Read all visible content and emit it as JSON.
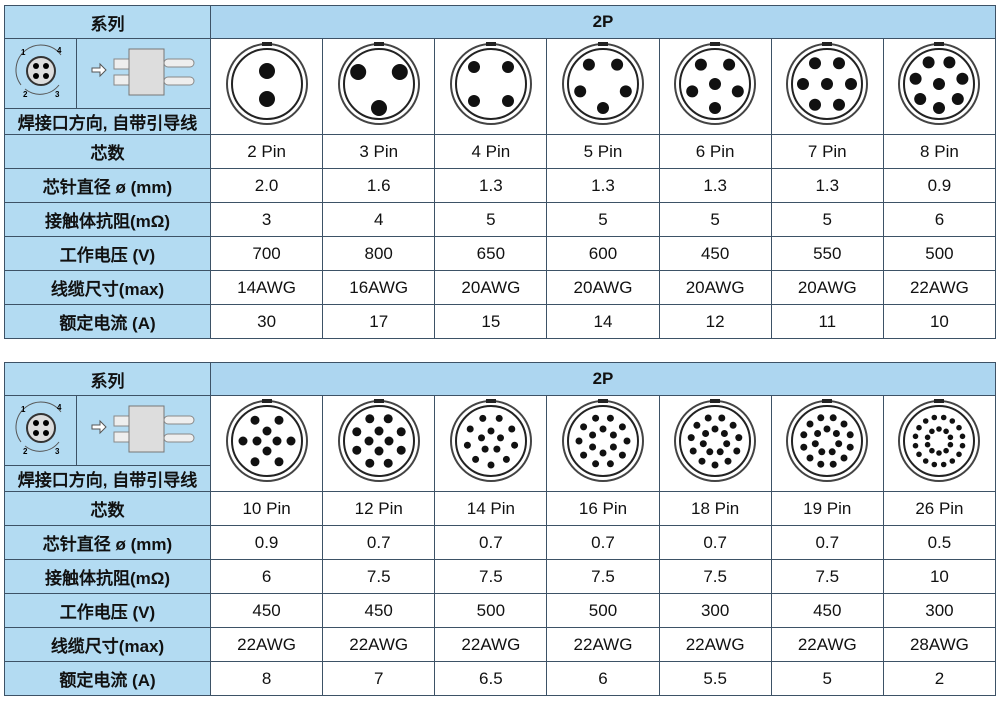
{
  "tables": [
    {
      "series_label": "系列",
      "series_value": "2P",
      "note": "焊接口方向, 自带引导线",
      "row_labels": [
        "芯数",
        "芯针直径 ø (mm)",
        "接触体抗阻(mΩ)",
        "工作电压 (V)",
        "线缆尺寸(max)",
        "额定电流 (A)"
      ],
      "columns": [
        {
          "pins": "2 Pin",
          "diameter": "2.0",
          "resistance": "3",
          "voltage": "700",
          "cable": "14AWG",
          "current": "30"
        },
        {
          "pins": "3 Pin",
          "diameter": "1.6",
          "resistance": "4",
          "voltage": "800",
          "cable": "16AWG",
          "current": "17"
        },
        {
          "pins": "4 Pin",
          "diameter": "1.3",
          "resistance": "5",
          "voltage": "650",
          "cable": "20AWG",
          "current": "15"
        },
        {
          "pins": "5 Pin",
          "diameter": "1.3",
          "resistance": "5",
          "voltage": "600",
          "cable": "20AWG",
          "current": "14"
        },
        {
          "pins": "6 Pin",
          "diameter": "1.3",
          "resistance": "5",
          "voltage": "450",
          "cable": "20AWG",
          "current": "12"
        },
        {
          "pins": "7 Pin",
          "diameter": "1.3",
          "resistance": "5",
          "voltage": "550",
          "cable": "20AWG",
          "current": "11"
        },
        {
          "pins": "8 Pin",
          "diameter": "0.9",
          "resistance": "6",
          "voltage": "500",
          "cable": "22AWG",
          "current": "10"
        }
      ]
    },
    {
      "series_label": "系列",
      "series_value": "2P",
      "note": "焊接口方向, 自带引导线",
      "row_labels": [
        "芯数",
        "芯针直径 ø (mm)",
        "接触体抗阻(mΩ)",
        "工作电压 (V)",
        "线缆尺寸(max)",
        "额定电流 (A)"
      ],
      "columns": [
        {
          "pins": "10 Pin",
          "diameter": "0.9",
          "resistance": "6",
          "voltage": "450",
          "cable": "22AWG",
          "current": "8"
        },
        {
          "pins": "12 Pin",
          "diameter": "0.7",
          "resistance": "7.5",
          "voltage": "450",
          "cable": "22AWG",
          "current": "7"
        },
        {
          "pins": "14 Pin",
          "diameter": "0.7",
          "resistance": "7.5",
          "voltage": "500",
          "cable": "22AWG",
          "current": "6.5"
        },
        {
          "pins": "16 Pin",
          "diameter": "0.7",
          "resistance": "7.5",
          "voltage": "500",
          "cable": "22AWG",
          "current": "6"
        },
        {
          "pins": "18 Pin",
          "diameter": "0.7",
          "resistance": "7.5",
          "voltage": "300",
          "cable": "22AWG",
          "current": "5.5"
        },
        {
          "pins": "19 Pin",
          "diameter": "0.7",
          "resistance": "7.5",
          "voltage": "450",
          "cable": "22AWG",
          "current": "5"
        },
        {
          "pins": "26 Pin",
          "diameter": "0.5",
          "resistance": "10",
          "voltage": "300",
          "cable": "28AWG",
          "current": "2"
        }
      ]
    }
  ],
  "colors": {
    "header": "#add6f0",
    "label": "#b3dbf2",
    "border": "#3d5266"
  }
}
